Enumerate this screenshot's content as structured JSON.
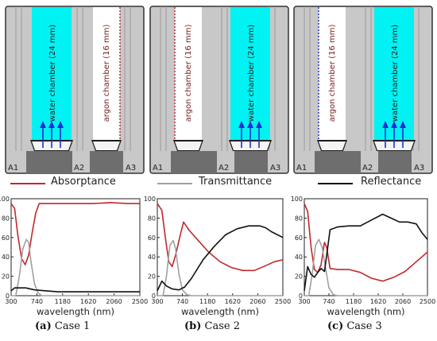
{
  "labels": {
    "water": "water chamber (24 mm)",
    "argon": "argon chamber (16 mm)",
    "a1": "A1",
    "a2": "A2",
    "a3": "A3"
  },
  "legend": [
    {
      "name": "Absorptance",
      "color": "#c0282d"
    },
    {
      "name": "Transmittance",
      "color": "#a0a0a0"
    },
    {
      "name": "Reflectance",
      "color": "#111111"
    }
  ],
  "axis": {
    "xlabel": "wavelength (nm)",
    "xticks": [
      "300",
      "740",
      "1180",
      "1620",
      "2060",
      "2500"
    ],
    "yticks": [
      "0",
      "20",
      "40",
      "60",
      "80",
      "100"
    ]
  },
  "captions": [
    {
      "letter": "(a)",
      "text": " Case 1"
    },
    {
      "letter": "(b)",
      "text": " Case 2"
    },
    {
      "letter": "(c)",
      "text": " Case 3"
    }
  ],
  "colors": {
    "water": "#00f2f2",
    "frame": "#c8c8c8",
    "base": "#6e6e6e",
    "arrow": "#1a2fd6",
    "dot_red": "#c0282d",
    "dot_blue": "#2a3cc8"
  },
  "chart_data": [
    {
      "type": "line",
      "xlabel": "wavelength (nm)",
      "xlim": [
        300,
        2500
      ],
      "ylim": [
        0,
        100
      ],
      "series": [
        {
          "name": "Absorptance",
          "color": "#c0282d",
          "x": [
            300,
            360,
            420,
            480,
            540,
            600,
            660,
            720,
            780,
            900,
            1100,
            1400,
            1700,
            2000,
            2300,
            2500
          ],
          "y": [
            95,
            90,
            60,
            38,
            32,
            42,
            65,
            85,
            95,
            95,
            95,
            95,
            95,
            96,
            95,
            95
          ]
        },
        {
          "name": "Transmittance",
          "color": "#a0a0a0",
          "x": [
            300,
            380,
            440,
            500,
            560,
            600,
            640,
            700,
            760,
            820,
            880,
            2500
          ],
          "y": [
            0,
            0,
            20,
            48,
            58,
            55,
            35,
            12,
            3,
            0,
            0,
            0
          ]
        },
        {
          "name": "Reflectance",
          "color": "#111111",
          "x": [
            300,
            360,
            450,
            550,
            700,
            900,
            1100,
            1400,
            1700,
            2000,
            2300,
            2500
          ],
          "y": [
            5,
            8,
            8,
            8,
            6,
            5,
            4,
            4,
            4,
            4,
            4,
            4
          ]
        }
      ]
    },
    {
      "type": "line",
      "xlabel": "wavelength (nm)",
      "xlim": [
        300,
        2500
      ],
      "ylim": [
        0,
        100
      ],
      "series": [
        {
          "name": "Absorptance",
          "color": "#c0282d",
          "x": [
            300,
            380,
            440,
            500,
            560,
            620,
            700,
            760,
            850,
            1000,
            1200,
            1400,
            1600,
            1800,
            2000,
            2200,
            2350,
            2500
          ],
          "y": [
            95,
            88,
            60,
            35,
            30,
            42,
            62,
            76,
            68,
            58,
            45,
            35,
            29,
            26,
            26,
            31,
            35,
            37
          ]
        },
        {
          "name": "Transmittance",
          "color": "#a0a0a0",
          "x": [
            300,
            400,
            460,
            520,
            580,
            620,
            680,
            740,
            820,
            900,
            2500
          ],
          "y": [
            0,
            0,
            20,
            52,
            57,
            48,
            22,
            6,
            1,
            0,
            0
          ]
        },
        {
          "name": "Reflectance",
          "color": "#111111",
          "x": [
            300,
            380,
            460,
            560,
            680,
            780,
            900,
            1100,
            1300,
            1500,
            1700,
            1900,
            2100,
            2200,
            2300,
            2400,
            2500
          ],
          "y": [
            5,
            15,
            10,
            7,
            6,
            9,
            18,
            37,
            51,
            63,
            69,
            72,
            72,
            70,
            66,
            63,
            60
          ]
        }
      ]
    },
    {
      "type": "line",
      "xlabel": "wavelength (nm)",
      "xlim": [
        300,
        2500
      ],
      "ylim": [
        0,
        100
      ],
      "series": [
        {
          "name": "Absorptance",
          "color": "#c0282d",
          "x": [
            300,
            360,
            420,
            480,
            540,
            600,
            660,
            700,
            760,
            900,
            1100,
            1300,
            1500,
            1700,
            1900,
            2100,
            2300,
            2500
          ],
          "y": [
            95,
            87,
            50,
            27,
            24,
            32,
            55,
            50,
            28,
            27,
            27,
            24,
            18,
            15,
            19,
            25,
            35,
            45
          ]
        },
        {
          "name": "Transmittance",
          "color": "#a0a0a0",
          "x": [
            300,
            380,
            440,
            500,
            560,
            620,
            680,
            740,
            820,
            900,
            2500
          ],
          "y": [
            0,
            0,
            22,
            52,
            58,
            50,
            28,
            8,
            1,
            0,
            0
          ]
        },
        {
          "name": "Reflectance",
          "color": "#111111",
          "x": [
            300,
            360,
            420,
            480,
            540,
            600,
            660,
            700,
            760,
            900,
            1100,
            1300,
            1500,
            1700,
            1850,
            2000,
            2150,
            2300,
            2400,
            2500
          ],
          "y": [
            5,
            30,
            22,
            19,
            24,
            28,
            25,
            42,
            68,
            71,
            72,
            72,
            78,
            84,
            80,
            76,
            76,
            74,
            65,
            58
          ]
        }
      ]
    }
  ]
}
